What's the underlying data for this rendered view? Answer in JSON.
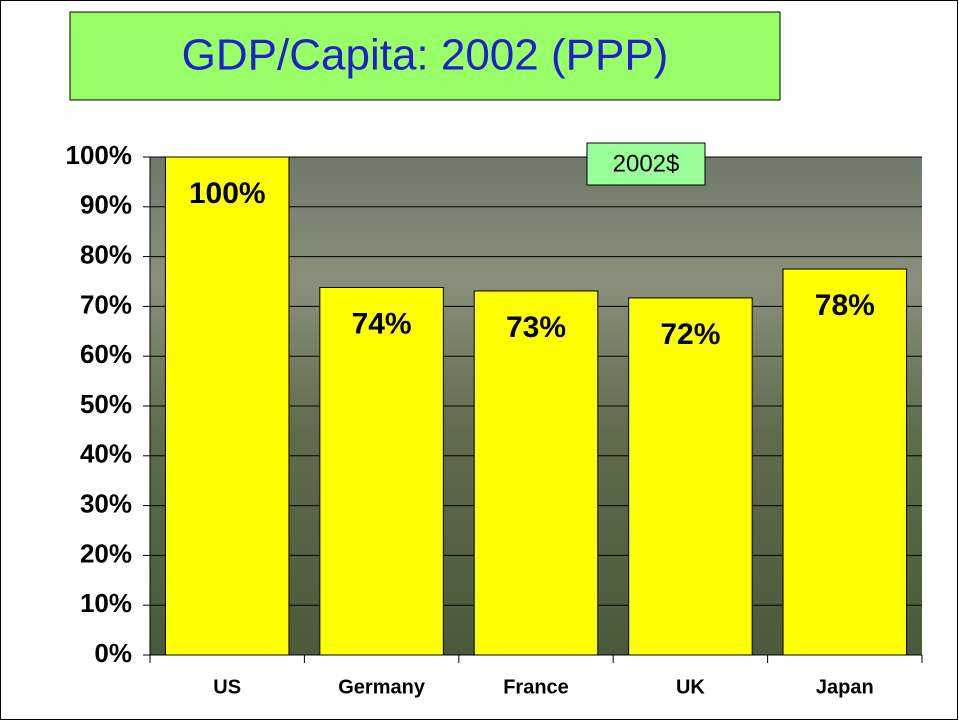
{
  "chart_data": {
    "type": "bar",
    "title": "GDP/Capita: 2002 (PPP)",
    "annotation": "2002$",
    "categories": [
      "US",
      "Germany",
      "France",
      "UK",
      "Japan"
    ],
    "values": [
      100,
      73.8,
      73.1,
      71.7,
      77.5
    ],
    "value_labels": [
      "100%",
      "74%",
      "73%",
      "72%",
      "78%"
    ],
    "color": "#ffff00",
    "ylim": [
      0,
      100
    ],
    "yticks": [
      {
        "value": 0,
        "label": "0%"
      },
      {
        "value": 10,
        "label": "10%"
      },
      {
        "value": 20,
        "label": "20%"
      },
      {
        "value": 30,
        "label": "30%"
      },
      {
        "value": 40,
        "label": "40%"
      },
      {
        "value": 50,
        "label": "50%"
      },
      {
        "value": 60,
        "label": "60%"
      },
      {
        "value": 70,
        "label": "70%"
      },
      {
        "value": 80,
        "label": "80%"
      },
      {
        "value": 90,
        "label": "90%"
      },
      {
        "value": 100,
        "label": "100%"
      }
    ],
    "grid": true
  }
}
